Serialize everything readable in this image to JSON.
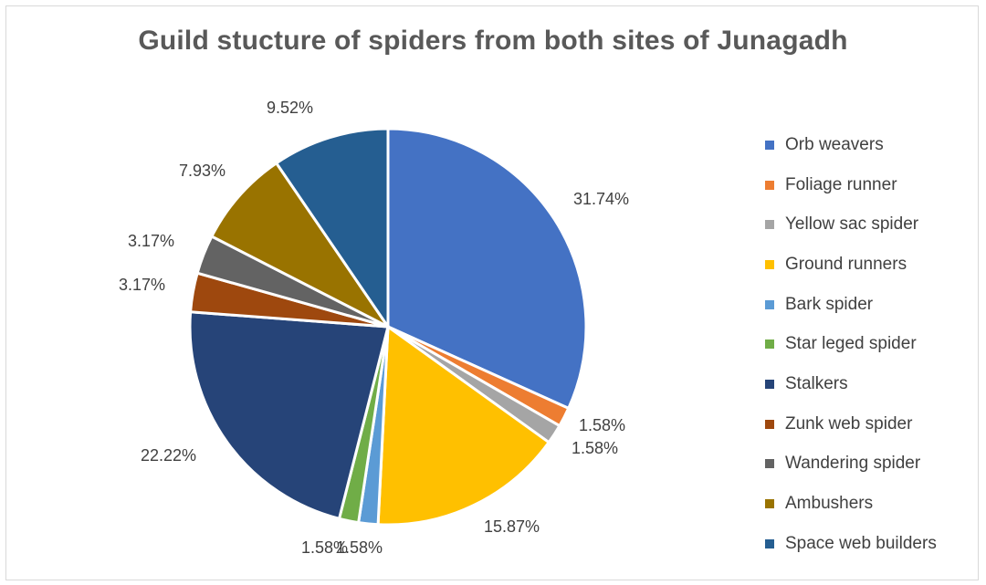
{
  "chart_data": {
    "type": "pie",
    "title": "Guild stucture of spiders from both sites of Junagadh",
    "legend_position": "right",
    "slices": [
      {
        "name": "Orb weavers",
        "value": 31.74,
        "label": "31.74%",
        "color": "#4472C4"
      },
      {
        "name": "Foliage runner",
        "value": 1.58,
        "label": "1.58%",
        "color": "#ED7D31"
      },
      {
        "name": "Yellow sac spider",
        "value": 1.58,
        "label": "1.58%",
        "color": "#A5A5A5"
      },
      {
        "name": "Ground runners",
        "value": 15.87,
        "label": "15.87%",
        "color": "#FFC000"
      },
      {
        "name": "Bark spider",
        "value": 1.58,
        "label": "1.58%",
        "color": "#5B9BD5"
      },
      {
        "name": "Star leged spider",
        "value": 1.58,
        "label": "1.58%",
        "color": "#70AD47"
      },
      {
        "name": "Stalkers",
        "value": 22.22,
        "label": "22.22%",
        "color": "#264478"
      },
      {
        "name": "Zunk web spider",
        "value": 3.17,
        "label": "3.17%",
        "color": "#9E480E"
      },
      {
        "name": "Wandering spider",
        "value": 3.17,
        "label": "3.17%",
        "color": "#636363"
      },
      {
        "name": "Ambushers",
        "value": 7.93,
        "label": "7.93%",
        "color": "#997300"
      },
      {
        "name": "Space web builders",
        "value": 9.52,
        "label": "9.52%",
        "color": "#255E91"
      }
    ]
  }
}
